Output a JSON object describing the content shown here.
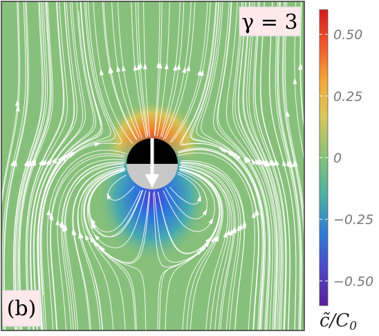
{
  "panel_label": "(b)",
  "gamma_label": "γ = 3",
  "chart_data": {
    "type": "heatmap",
    "colorbar": {
      "label_main": "c̃",
      "label_denominator": "/C",
      "label_subscript": "0",
      "range": [
        -0.6,
        0.6
      ],
      "ticks": [
        0.5,
        0.25,
        0,
        -0.25,
        -0.5
      ],
      "tick_labels": [
        "0.50",
        "0.25",
        "0",
        "−0.25",
        "−0.50"
      ]
    },
    "colors": {
      "background": "#87c07a",
      "streamline": "#ffffff",
      "particle_top": "#000000",
      "particle_bottom": "#c8c8c8",
      "arrow": "#ffffff",
      "label_box": "#fde8ea"
    }
  }
}
